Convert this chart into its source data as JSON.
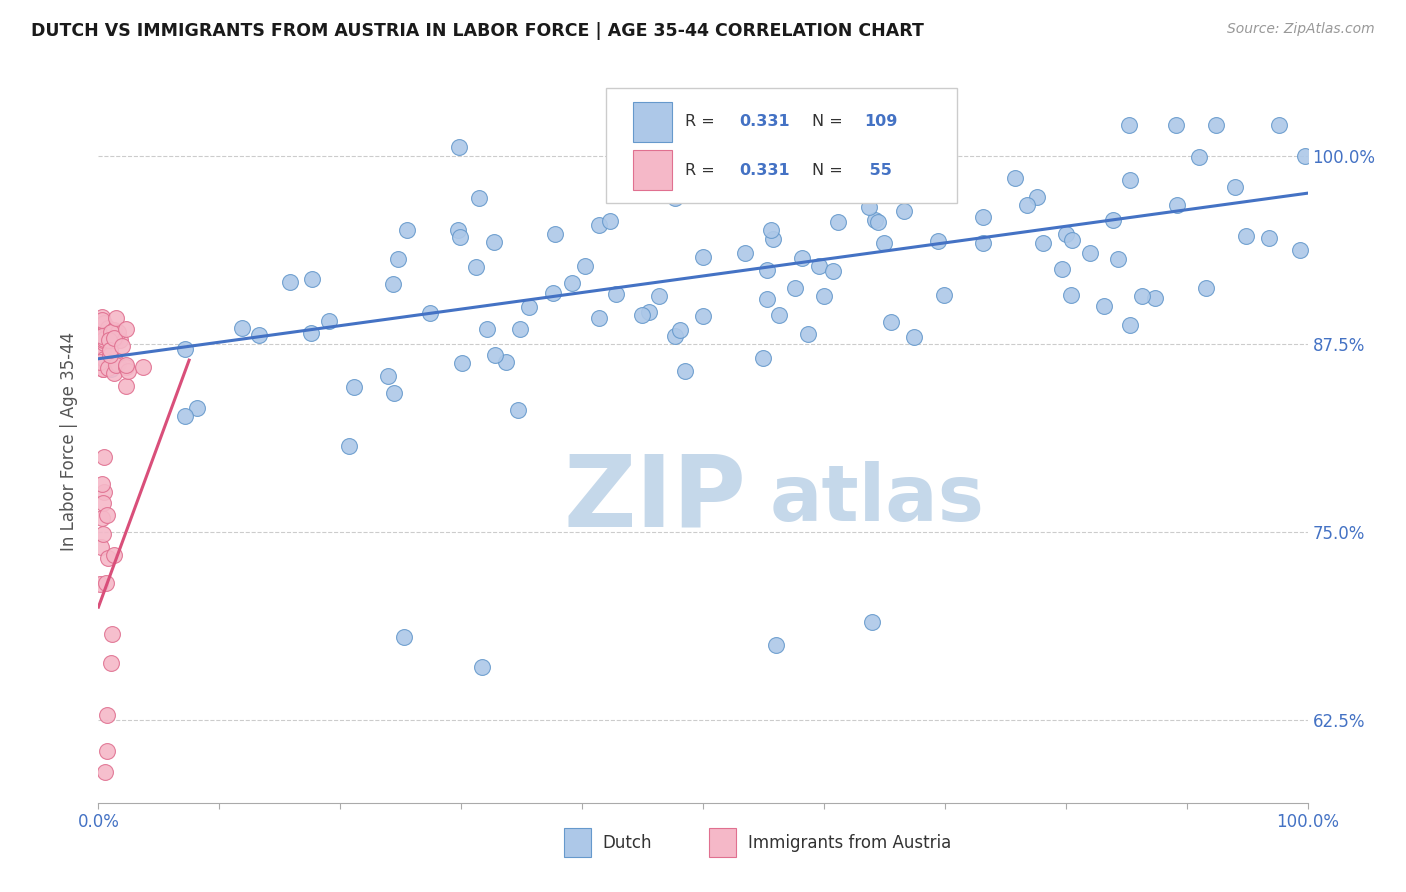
{
  "title": "DUTCH VS IMMIGRANTS FROM AUSTRIA IN LABOR FORCE | AGE 35-44 CORRELATION CHART",
  "source": "Source: ZipAtlas.com",
  "ylabel": "In Labor Force | Age 35-44",
  "legend_dutch": "Dutch",
  "legend_austria": "Immigrants from Austria",
  "R_dutch": 0.331,
  "N_dutch": 109,
  "R_austria": 0.331,
  "N_austria": 55,
  "dutch_color": "#adc8e8",
  "dutch_edge_color": "#6699cc",
  "austria_color": "#f5b8c8",
  "austria_edge_color": "#e07090",
  "blue_line_color": "#4472c4",
  "pink_line_color": "#d94f7a",
  "watermark_zip_color": "#c5d8ea",
  "watermark_atlas_color": "#c5d8ea",
  "background_color": "#ffffff",
  "title_color": "#1a1a1a",
  "axis_label_color": "#555555",
  "right_label_color": "#4472c4",
  "bottom_label_color": "#4472c4",
  "legend_text_color": "#333333",
  "legend_value_color": "#4472c4",
  "grid_color": "#cccccc",
  "xlim": [
    0.0,
    1.0
  ],
  "ylim": [
    0.57,
    1.05
  ],
  "yticks": [
    0.625,
    0.75,
    0.875,
    1.0
  ],
  "xticks": [
    0.0,
    0.1,
    0.2,
    0.3,
    0.4,
    0.5,
    0.6,
    0.7,
    0.8,
    0.9,
    1.0
  ],
  "seed": 42
}
